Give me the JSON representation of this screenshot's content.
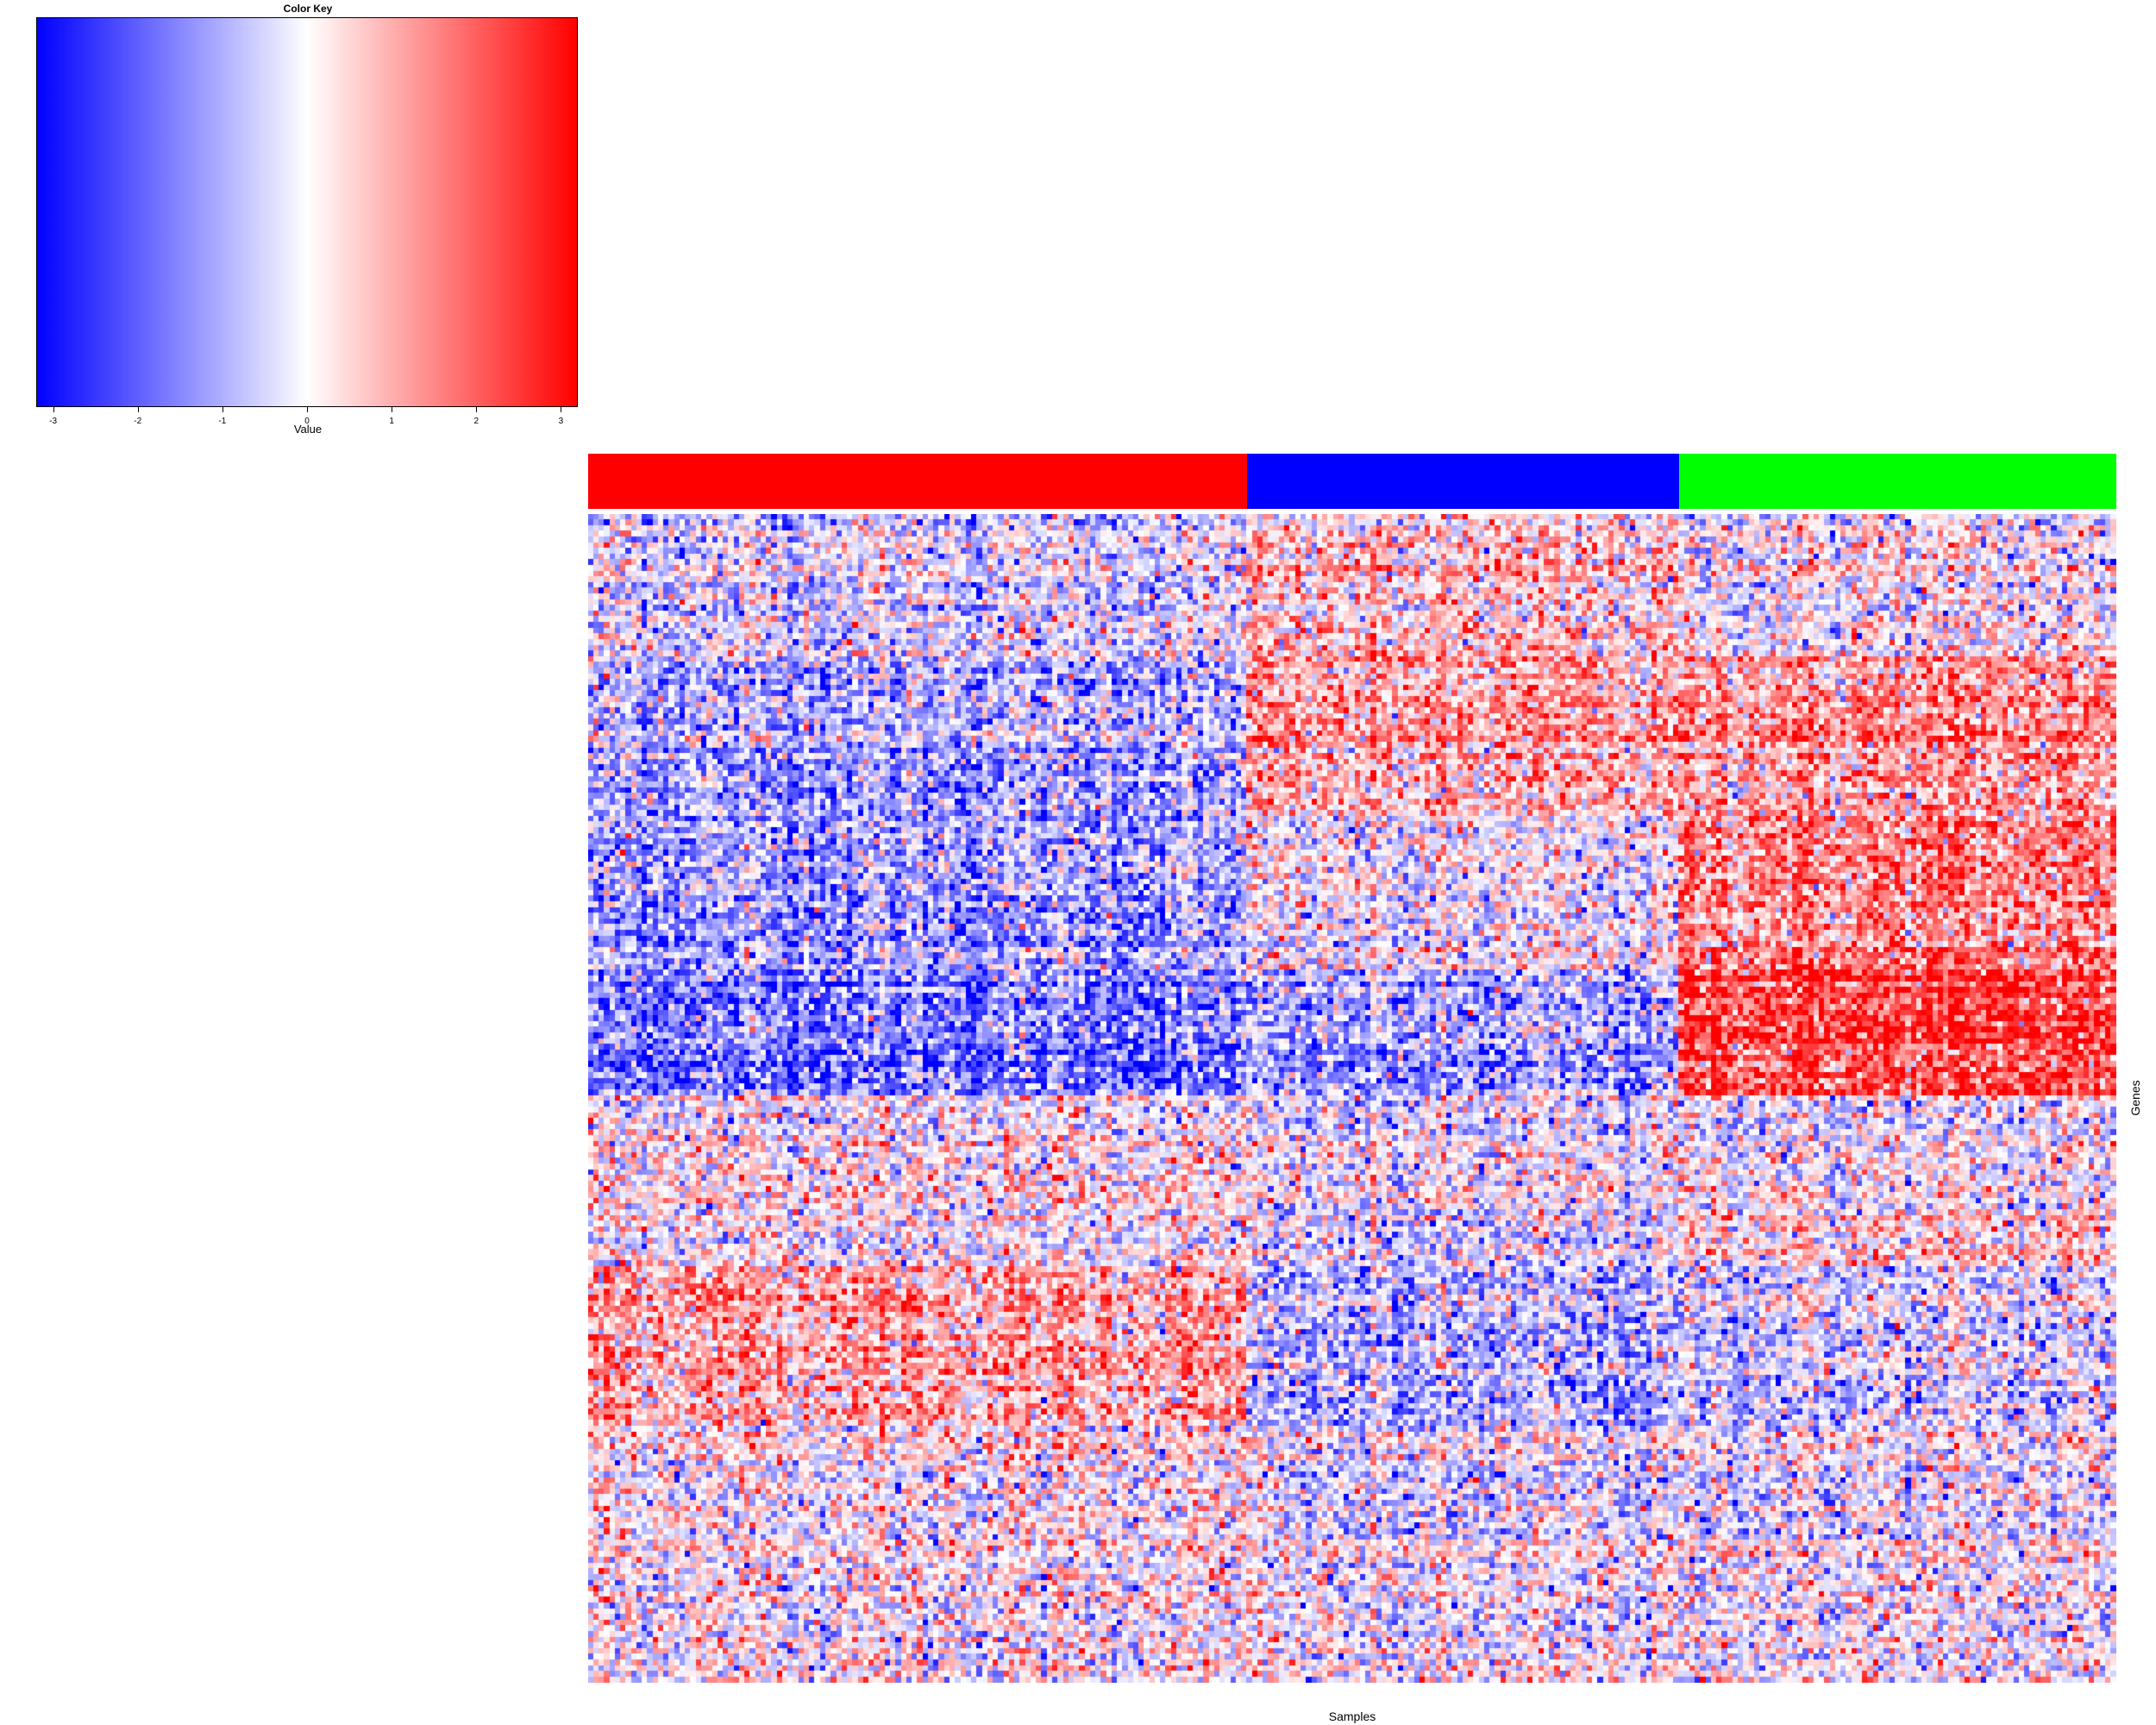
{
  "chart_data": {
    "type": "heatmap",
    "title": "",
    "xlabel": "Samples",
    "ylabel": "Genes",
    "color_key": {
      "title": "Color Key",
      "xlabel": "Value",
      "ticks": [
        -3,
        -2,
        -1,
        0,
        1,
        2,
        3
      ],
      "tick_labels": [
        "-3",
        "-2",
        "-1",
        "0",
        "1",
        "2",
        "3"
      ],
      "range": [
        -3.2,
        3.2
      ],
      "low_color": "#0000ff",
      "mid_color": "#ffffff",
      "high_color": "#ff0000"
    },
    "sample_groups": [
      {
        "color": "#ff0000",
        "n_samples": 122
      },
      {
        "color": "#0000ff",
        "n_samples": 80
      },
      {
        "color": "#00ff00",
        "n_samples": 81
      }
    ],
    "gene_clusters": [
      {
        "n_genes": 25,
        "mean_by_group": [
          -0.3,
          0.6,
          0.1
        ]
      },
      {
        "n_genes": 28,
        "mean_by_group": [
          -1.0,
          0.9,
          1.2
        ]
      },
      {
        "n_genes": 27,
        "mean_by_group": [
          -1.2,
          -0.2,
          1.4
        ]
      },
      {
        "n_genes": 22,
        "mean_by_group": [
          -1.6,
          -1.1,
          2.4
        ]
      },
      {
        "n_genes": 20,
        "mean_by_group": [
          0.1,
          -0.3,
          -0.1
        ]
      },
      {
        "n_genes": 10,
        "mean_by_group": [
          0.0,
          -0.5,
          0.4
        ]
      },
      {
        "n_genes": 28,
        "mean_by_group": [
          1.0,
          -1.0,
          -0.5
        ]
      },
      {
        "n_genes": 20,
        "mean_by_group": [
          0.2,
          -0.4,
          -0.2
        ]
      },
      {
        "n_genes": 5,
        "mean_by_group": [
          0.0,
          0.0,
          0.0
        ]
      },
      {
        "n_genes": 20,
        "mean_by_group": [
          0.1,
          -0.1,
          0.0
        ]
      }
    ]
  }
}
